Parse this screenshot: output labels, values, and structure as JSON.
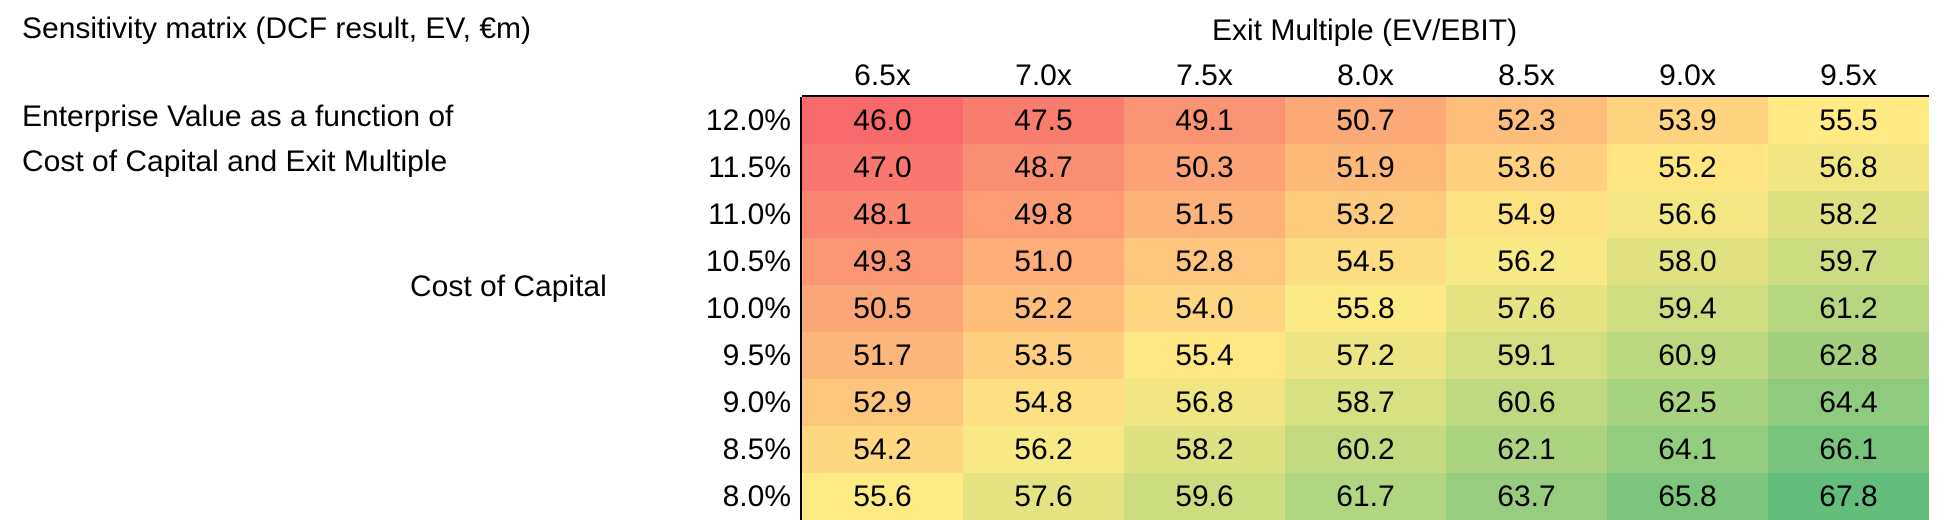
{
  "title": "Sensitivity matrix (DCF result, EV, €m)",
  "description": [
    "Enterprise Value as a function of",
    "Cost of Capital and Exit Multiple"
  ],
  "row_axis_label": "Cost of Capital",
  "col_axis_label": "Exit Multiple (EV/EBIT)",
  "colors": {
    "low": "#f8696b",
    "mid": "#ffeb84",
    "high": "#63be7b"
  },
  "chart_data": {
    "type": "heatmap",
    "title": "Sensitivity matrix (DCF result, EV, €m)",
    "xlabel": "Exit Multiple (EV/EBIT)",
    "ylabel": "Cost of Capital",
    "columns": [
      "6.5x",
      "7.0x",
      "7.5x",
      "8.0x",
      "8.5x",
      "9.0x",
      "9.5x"
    ],
    "rows": [
      "12.0%",
      "11.5%",
      "11.0%",
      "10.5%",
      "10.0%",
      "9.5%",
      "9.0%",
      "8.5%",
      "8.0%"
    ],
    "values": [
      [
        "46.0",
        "47.5",
        "49.1",
        "50.7",
        "52.3",
        "53.9",
        "55.5"
      ],
      [
        "47.0",
        "48.7",
        "50.3",
        "51.9",
        "53.6",
        "55.2",
        "56.8"
      ],
      [
        "48.1",
        "49.8",
        "51.5",
        "53.2",
        "54.9",
        "56.6",
        "58.2"
      ],
      [
        "49.3",
        "51.0",
        "52.8",
        "54.5",
        "56.2",
        "58.0",
        "59.7"
      ],
      [
        "50.5",
        "52.2",
        "54.0",
        "55.8",
        "57.6",
        "59.4",
        "61.2"
      ],
      [
        "51.7",
        "53.5",
        "55.4",
        "57.2",
        "59.1",
        "60.9",
        "62.8"
      ],
      [
        "52.9",
        "54.8",
        "56.8",
        "58.7",
        "60.6",
        "62.5",
        "64.4"
      ],
      [
        "54.2",
        "56.2",
        "58.2",
        "60.2",
        "62.1",
        "64.1",
        "66.1"
      ],
      [
        "55.6",
        "57.6",
        "59.6",
        "61.7",
        "63.7",
        "65.8",
        "67.8"
      ]
    ]
  }
}
